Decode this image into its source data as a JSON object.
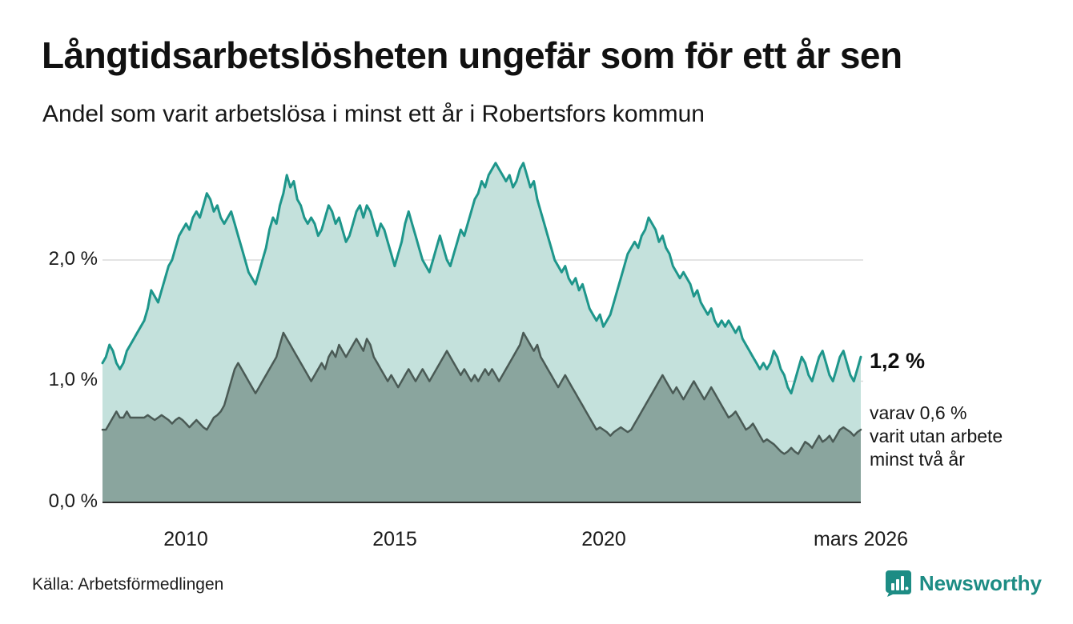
{
  "title": "Långtidsarbetslösheten ungefär som för ett år sen",
  "subtitle": "Andel som varit arbetslösa i minst ett år i Robertsfors kommun",
  "source": "Källa: Arbetsförmedlingen",
  "brand": {
    "name": "Newsworthy",
    "color": "#1d8c84",
    "icon": "bar-chart-bubble-icon"
  },
  "annotations": {
    "latest_total": "1,2 %",
    "secondary_line1": "varav 0,6 %",
    "secondary_line2": "varit utan arbete",
    "secondary_line3": "minst två år"
  },
  "chart_data": {
    "type": "area",
    "x_start": "2008-01",
    "x_end": "2026-03",
    "x_tick_labels": [
      "2010",
      "2015",
      "2020",
      "mars 2026"
    ],
    "x_tick_indices": [
      24,
      84,
      144,
      218
    ],
    "y_tick_labels": [
      "0,0 %",
      "1,0 %",
      "2,0 %"
    ],
    "ylim": [
      0,
      3.0
    ],
    "grid": "horizontal-only",
    "legend": "none",
    "colors": {
      "grid": "#dcdcdc",
      "baseline": "#2f2f2f"
    },
    "series": [
      {
        "name": "Andel arbetslösa minst ett år",
        "latest_value": 1.2,
        "line_color": "#1e968b",
        "fill_color": "#c4e1dc",
        "values": [
          1.15,
          1.2,
          1.3,
          1.25,
          1.15,
          1.1,
          1.15,
          1.25,
          1.3,
          1.35,
          1.4,
          1.45,
          1.5,
          1.6,
          1.75,
          1.7,
          1.65,
          1.75,
          1.85,
          1.95,
          2.0,
          2.1,
          2.2,
          2.25,
          2.3,
          2.25,
          2.35,
          2.4,
          2.35,
          2.45,
          2.55,
          2.5,
          2.4,
          2.45,
          2.35,
          2.3,
          2.35,
          2.4,
          2.3,
          2.2,
          2.1,
          2.0,
          1.9,
          1.85,
          1.8,
          1.9,
          2.0,
          2.1,
          2.25,
          2.35,
          2.3,
          2.45,
          2.55,
          2.7,
          2.6,
          2.65,
          2.5,
          2.45,
          2.35,
          2.3,
          2.35,
          2.3,
          2.2,
          2.25,
          2.35,
          2.45,
          2.4,
          2.3,
          2.35,
          2.25,
          2.15,
          2.2,
          2.3,
          2.4,
          2.45,
          2.35,
          2.45,
          2.4,
          2.3,
          2.2,
          2.3,
          2.25,
          2.15,
          2.05,
          1.95,
          2.05,
          2.15,
          2.3,
          2.4,
          2.3,
          2.2,
          2.1,
          2.0,
          1.95,
          1.9,
          2.0,
          2.1,
          2.2,
          2.1,
          2.0,
          1.95,
          2.05,
          2.15,
          2.25,
          2.2,
          2.3,
          2.4,
          2.5,
          2.55,
          2.65,
          2.6,
          2.7,
          2.75,
          2.8,
          2.75,
          2.7,
          2.65,
          2.7,
          2.6,
          2.65,
          2.75,
          2.8,
          2.7,
          2.6,
          2.65,
          2.5,
          2.4,
          2.3,
          2.2,
          2.1,
          2.0,
          1.95,
          1.9,
          1.95,
          1.85,
          1.8,
          1.85,
          1.75,
          1.8,
          1.7,
          1.6,
          1.55,
          1.5,
          1.55,
          1.45,
          1.5,
          1.55,
          1.65,
          1.75,
          1.85,
          1.95,
          2.05,
          2.1,
          2.15,
          2.1,
          2.2,
          2.25,
          2.35,
          2.3,
          2.25,
          2.15,
          2.2,
          2.1,
          2.05,
          1.95,
          1.9,
          1.85,
          1.9,
          1.85,
          1.8,
          1.7,
          1.75,
          1.65,
          1.6,
          1.55,
          1.6,
          1.5,
          1.45,
          1.5,
          1.45,
          1.5,
          1.45,
          1.4,
          1.45,
          1.35,
          1.3,
          1.25,
          1.2,
          1.15,
          1.1,
          1.15,
          1.1,
          1.15,
          1.25,
          1.2,
          1.1,
          1.05,
          0.95,
          0.9,
          1.0,
          1.1,
          1.2,
          1.15,
          1.05,
          1.0,
          1.1,
          1.2,
          1.25,
          1.15,
          1.05,
          1.0,
          1.1,
          1.2,
          1.25,
          1.15,
          1.05,
          1.0,
          1.1,
          1.2
        ]
      },
      {
        "name": "varav utan arbete minst två år",
        "latest_value": 0.6,
        "line_color": "#4a5a55",
        "fill_color": "#8aa59e",
        "values": [
          0.6,
          0.6,
          0.65,
          0.7,
          0.75,
          0.7,
          0.7,
          0.75,
          0.7,
          0.7,
          0.7,
          0.7,
          0.7,
          0.72,
          0.7,
          0.68,
          0.7,
          0.72,
          0.7,
          0.68,
          0.65,
          0.68,
          0.7,
          0.68,
          0.65,
          0.62,
          0.65,
          0.68,
          0.65,
          0.62,
          0.6,
          0.65,
          0.7,
          0.72,
          0.75,
          0.8,
          0.9,
          1.0,
          1.1,
          1.15,
          1.1,
          1.05,
          1.0,
          0.95,
          0.9,
          0.95,
          1.0,
          1.05,
          1.1,
          1.15,
          1.2,
          1.3,
          1.4,
          1.35,
          1.3,
          1.25,
          1.2,
          1.15,
          1.1,
          1.05,
          1.0,
          1.05,
          1.1,
          1.15,
          1.1,
          1.2,
          1.25,
          1.2,
          1.3,
          1.25,
          1.2,
          1.25,
          1.3,
          1.35,
          1.3,
          1.25,
          1.35,
          1.3,
          1.2,
          1.15,
          1.1,
          1.05,
          1.0,
          1.05,
          1.0,
          0.95,
          1.0,
          1.05,
          1.1,
          1.05,
          1.0,
          1.05,
          1.1,
          1.05,
          1.0,
          1.05,
          1.1,
          1.15,
          1.2,
          1.25,
          1.2,
          1.15,
          1.1,
          1.05,
          1.1,
          1.05,
          1.0,
          1.05,
          1.0,
          1.05,
          1.1,
          1.05,
          1.1,
          1.05,
          1.0,
          1.05,
          1.1,
          1.15,
          1.2,
          1.25,
          1.3,
          1.4,
          1.35,
          1.3,
          1.25,
          1.3,
          1.2,
          1.15,
          1.1,
          1.05,
          1.0,
          0.95,
          1.0,
          1.05,
          1.0,
          0.95,
          0.9,
          0.85,
          0.8,
          0.75,
          0.7,
          0.65,
          0.6,
          0.62,
          0.6,
          0.58,
          0.55,
          0.58,
          0.6,
          0.62,
          0.6,
          0.58,
          0.6,
          0.65,
          0.7,
          0.75,
          0.8,
          0.85,
          0.9,
          0.95,
          1.0,
          1.05,
          1.0,
          0.95,
          0.9,
          0.95,
          0.9,
          0.85,
          0.9,
          0.95,
          1.0,
          0.95,
          0.9,
          0.85,
          0.9,
          0.95,
          0.9,
          0.85,
          0.8,
          0.75,
          0.7,
          0.72,
          0.75,
          0.7,
          0.65,
          0.6,
          0.62,
          0.65,
          0.6,
          0.55,
          0.5,
          0.52,
          0.5,
          0.48,
          0.45,
          0.42,
          0.4,
          0.42,
          0.45,
          0.42,
          0.4,
          0.45,
          0.5,
          0.48,
          0.45,
          0.5,
          0.55,
          0.5,
          0.52,
          0.55,
          0.5,
          0.55,
          0.6,
          0.62,
          0.6,
          0.58,
          0.55,
          0.58,
          0.6
        ]
      }
    ]
  }
}
